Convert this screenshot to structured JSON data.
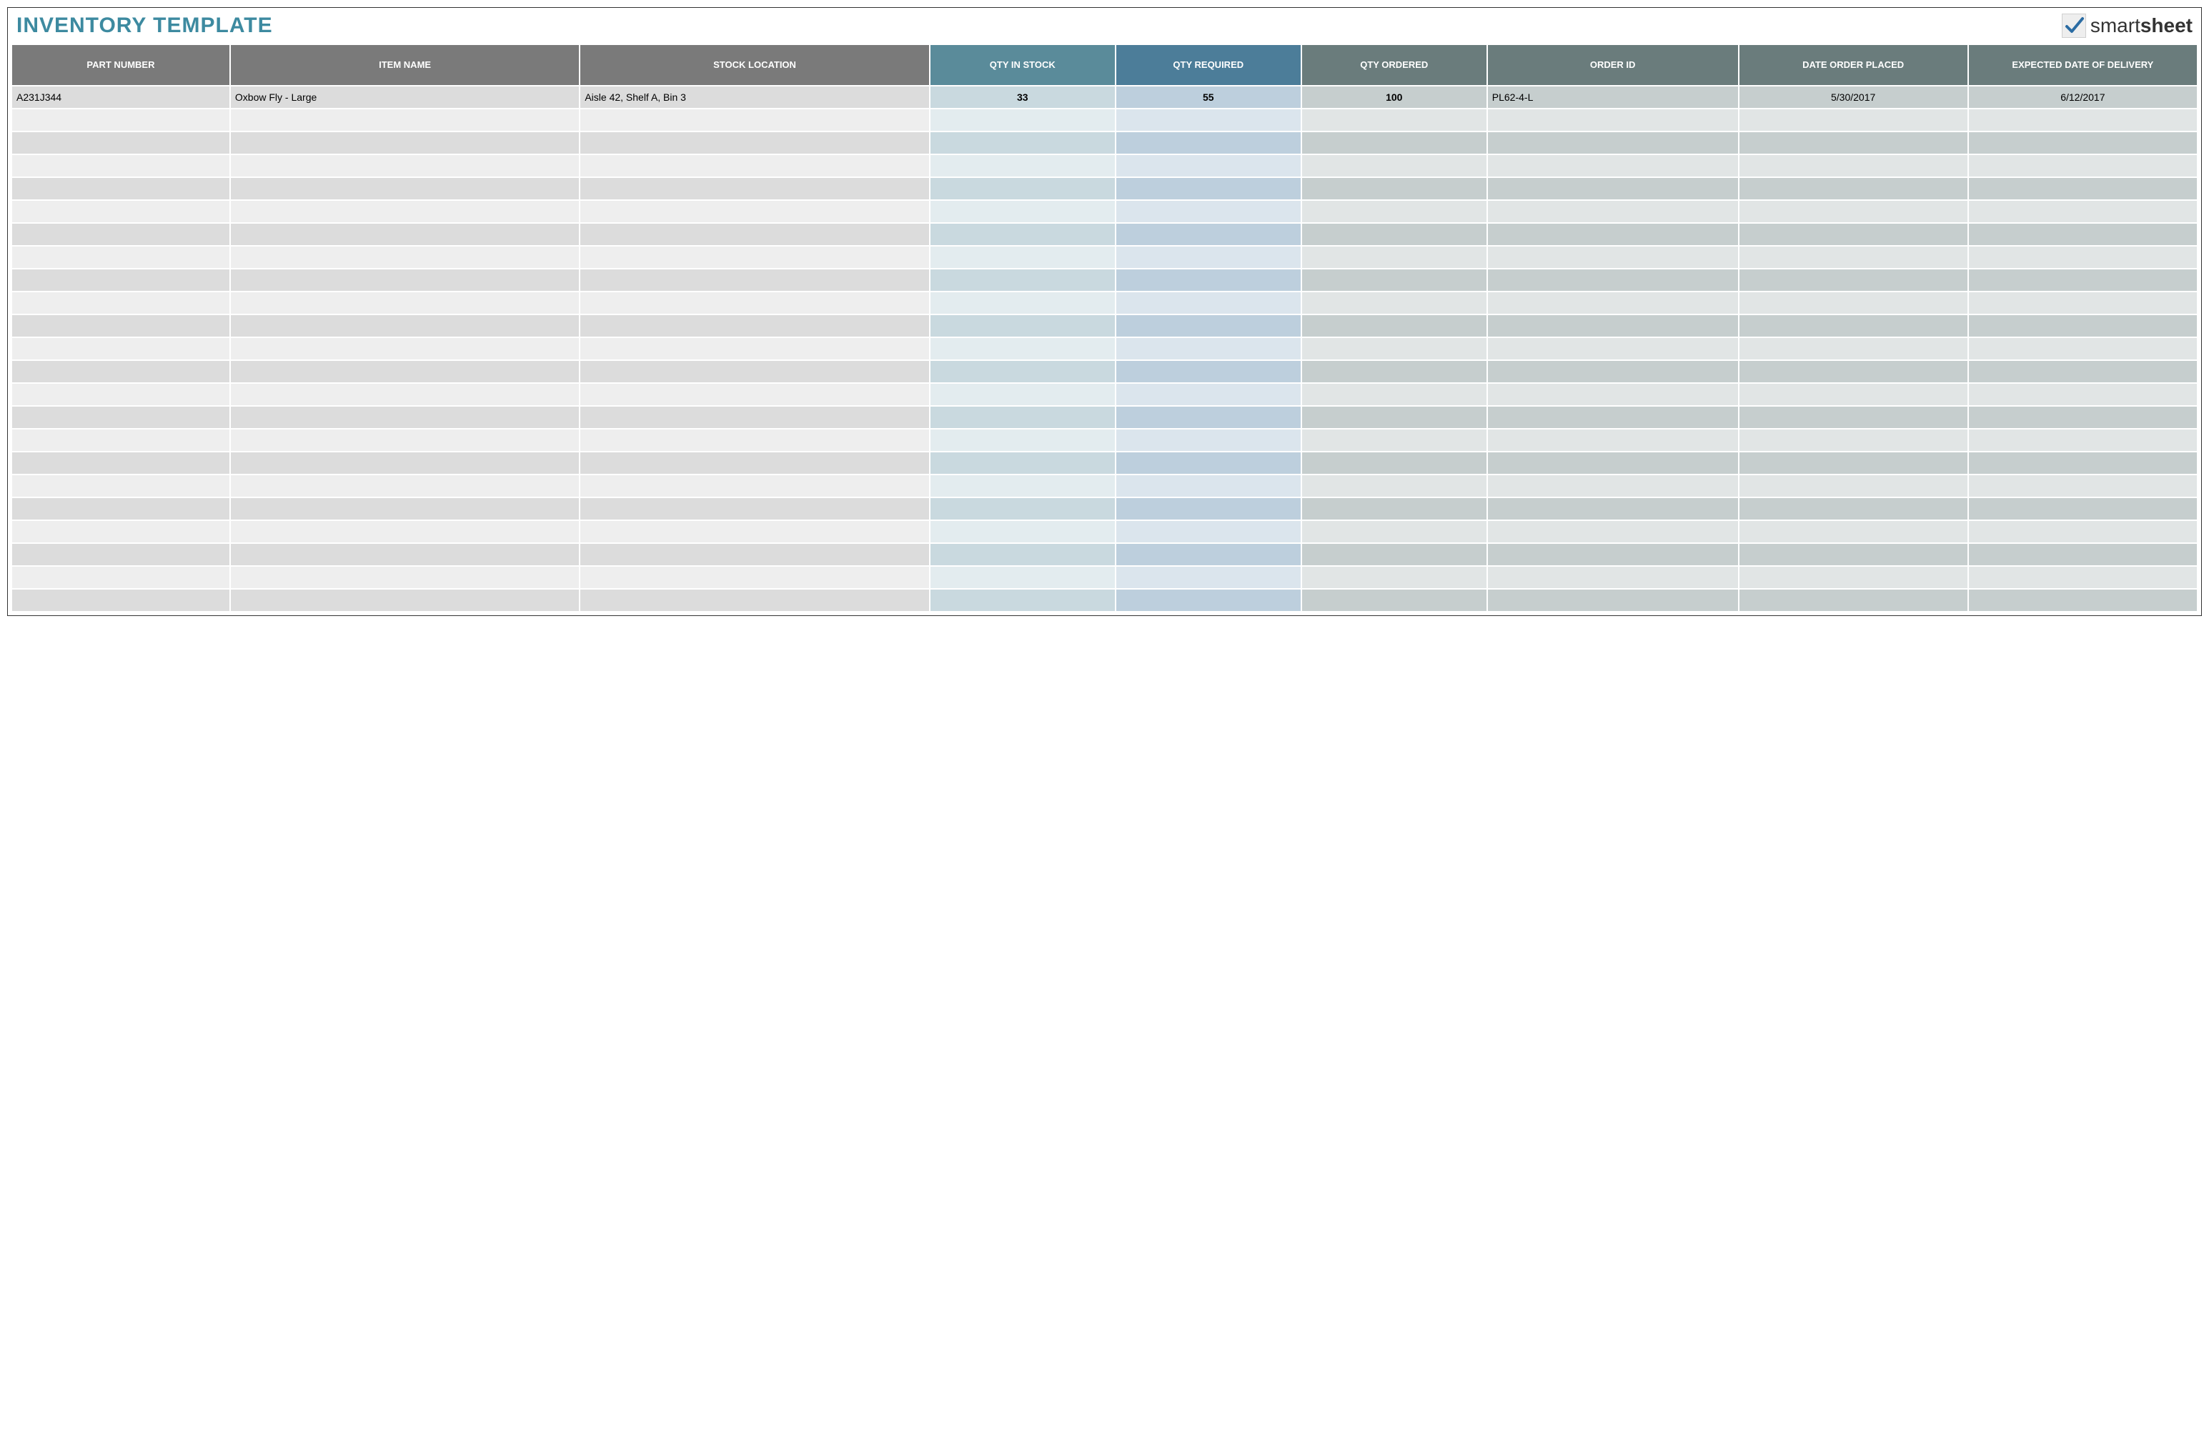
{
  "title": {
    "text": "INVENTORY TEMPLATE",
    "color": "#3d8aa0"
  },
  "logo": {
    "wordmark_prefix": "smart",
    "wordmark_suffix": "sheet",
    "check_color": "#2b6ca3"
  },
  "table": {
    "num_empty_rows": 22,
    "columns": [
      {
        "key": "part_number",
        "label": "PART NUMBER",
        "width_pct": 10.0,
        "header_bg": "#7a7a7a",
        "odd_bg": "#dcdcdc",
        "even_bg": "#eeeeee",
        "align": "left",
        "bold": false
      },
      {
        "key": "item_name",
        "label": "ITEM NAME",
        "width_pct": 16.0,
        "header_bg": "#7a7a7a",
        "odd_bg": "#dcdcdc",
        "even_bg": "#eeeeee",
        "align": "left",
        "bold": false
      },
      {
        "key": "stock_location",
        "label": "STOCK LOCATION",
        "width_pct": 16.0,
        "header_bg": "#7a7a7a",
        "odd_bg": "#dcdcdc",
        "even_bg": "#eeeeee",
        "align": "left",
        "bold": false
      },
      {
        "key": "qty_in_stock",
        "label": "QTY IN STOCK",
        "width_pct": 8.5,
        "header_bg": "#5a8b9a",
        "odd_bg": "#c9d9df",
        "even_bg": "#e3ecef",
        "align": "center",
        "bold": true
      },
      {
        "key": "qty_required",
        "label": "QTY REQUIRED",
        "width_pct": 8.5,
        "header_bg": "#4c7d99",
        "odd_bg": "#bdcfdd",
        "even_bg": "#dbe5ed",
        "align": "center",
        "bold": true
      },
      {
        "key": "qty_ordered",
        "label": "QTY ORDERED",
        "width_pct": 8.5,
        "header_bg": "#6a7c7c",
        "odd_bg": "#c6cece",
        "even_bg": "#e1e5e5",
        "align": "center",
        "bold": true
      },
      {
        "key": "order_id",
        "label": "ORDER ID",
        "width_pct": 11.5,
        "header_bg": "#6a7c7c",
        "odd_bg": "#c6cece",
        "even_bg": "#e1e5e5",
        "align": "left",
        "bold": false
      },
      {
        "key": "date_placed",
        "label": "DATE ORDER PLACED",
        "width_pct": 10.5,
        "header_bg": "#6a7c7c",
        "odd_bg": "#c6cece",
        "even_bg": "#e1e5e5",
        "align": "center",
        "bold": false
      },
      {
        "key": "date_expected",
        "label": "EXPECTED DATE OF DELIVERY",
        "width_pct": 10.5,
        "header_bg": "#6a7c7c",
        "odd_bg": "#c6cece",
        "even_bg": "#e1e5e5",
        "align": "center",
        "bold": false
      }
    ],
    "rows": [
      {
        "part_number": "A231J344",
        "item_name": "Oxbow Fly - Large",
        "stock_location": "Aisle 42, Shelf A, Bin 3",
        "qty_in_stock": "33",
        "qty_required": "55",
        "qty_ordered": "100",
        "order_id": "PL62-4-L",
        "date_placed": "5/30/2017",
        "date_expected": "6/12/2017"
      }
    ]
  }
}
